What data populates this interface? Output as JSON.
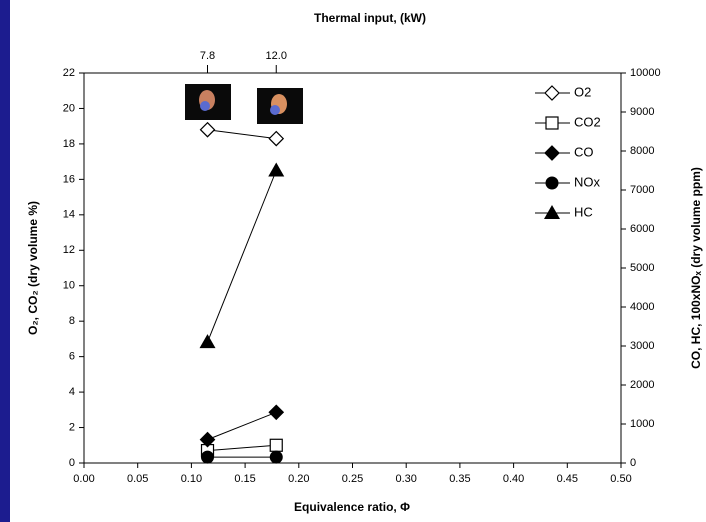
{
  "chart_data": {
    "type": "line",
    "top_title": "Thermal input, (kW)",
    "top_ticks": [
      "7.8",
      "12.0"
    ],
    "x_label": "Equivalence ratio, Φ",
    "y_label": "O₂, CO₂ (dry volume %)",
    "y2_label": "CO, HC, 100xNOₓ (dry volume ppm)",
    "x": [
      0.115,
      0.179
    ],
    "series": [
      {
        "name": "O2",
        "marker": "open-diamond",
        "color": "#000000",
        "values": [
          18.8,
          18.3
        ]
      },
      {
        "name": "CO2",
        "marker": "open-square",
        "color": "#000000",
        "values": [
          0.7,
          1.0
        ]
      },
      {
        "name": "CO",
        "marker": "diamond",
        "color": "#000000",
        "axis": "y2",
        "values": [
          600,
          1300
        ]
      },
      {
        "name": "NOx",
        "marker": "circle",
        "color": "#000000",
        "axis": "y2",
        "values": [
          150,
          150
        ]
      },
      {
        "name": "HC",
        "marker": "triangle",
        "color": "#000000",
        "axis": "y2",
        "values": [
          3100,
          7500
        ]
      }
    ],
    "xlim": [
      0,
      0.5
    ],
    "xticks": [
      {
        "value": 0,
        "label": "0.00"
      },
      {
        "value": 0.05,
        "label": "0.05"
      },
      {
        "value": 0.1,
        "label": "0.10"
      },
      {
        "value": 0.15,
        "label": "0.15"
      },
      {
        "value": 0.2,
        "label": "0.20"
      },
      {
        "value": 0.25,
        "label": "0.25"
      },
      {
        "value": 0.3,
        "label": "0.30"
      },
      {
        "value": 0.35,
        "label": "0.35"
      },
      {
        "value": 0.4,
        "label": "0.40"
      },
      {
        "value": 0.45,
        "label": "0.45"
      },
      {
        "value": 0.5,
        "label": "0.50"
      }
    ],
    "ylim": [
      0,
      22
    ],
    "yticks": [
      0,
      2,
      4,
      6,
      8,
      10,
      12,
      14,
      16,
      18,
      20,
      22
    ],
    "y2lim": [
      0,
      10000
    ],
    "y2ticks": [
      0,
      1000,
      2000,
      3000,
      4000,
      5000,
      6000,
      7000,
      8000,
      9000,
      10000
    ],
    "legend": "upper right"
  }
}
